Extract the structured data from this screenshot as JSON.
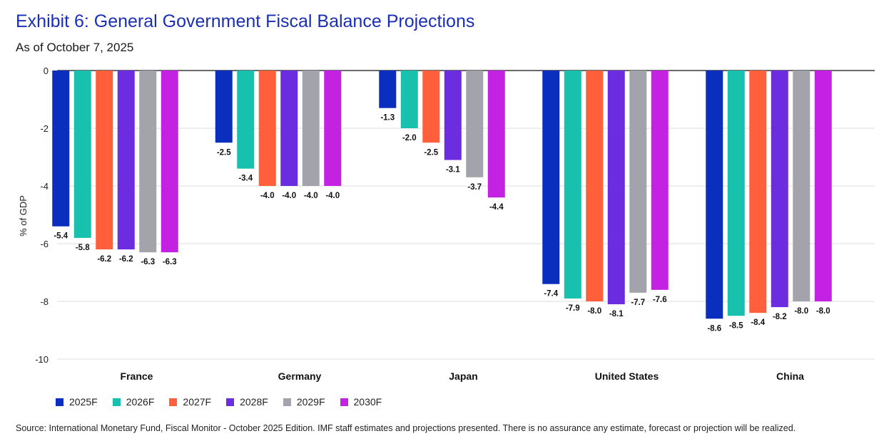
{
  "header": {
    "title": "Exhibit 6: General Government Fiscal Balance Projections",
    "subtitle": "As of October 7, 2025"
  },
  "source": "Source: International Monetary Fund, Fiscal Monitor - October 2025 Edition. IMF staff estimates and projections presented. There is no assurance any estimate, forecast or projection will be realized.",
  "chart_data": {
    "type": "bar",
    "title": "Exhibit 6: General Government Fiscal Balance Projections",
    "subtitle": "As of October 7, 2025",
    "xlabel": "",
    "ylabel": "% of GDP",
    "ylim": [
      -10,
      0
    ],
    "yticks": [
      0,
      -2,
      -4,
      -6,
      -8,
      -10
    ],
    "grid": true,
    "legend_position": "bottom-left",
    "categories": [
      "France",
      "Germany",
      "Japan",
      "United States",
      "China"
    ],
    "series": [
      {
        "name": "2025F",
        "color": "#0a2ebd",
        "values": [
          -5.4,
          -2.5,
          -1.3,
          -7.4,
          -8.6
        ]
      },
      {
        "name": "2026F",
        "color": "#17c1ad",
        "values": [
          -5.8,
          -3.4,
          -2.0,
          -7.9,
          -8.5
        ]
      },
      {
        "name": "2027F",
        "color": "#ff5f3a",
        "values": [
          -6.2,
          -4.0,
          -2.5,
          -8.0,
          -8.4
        ]
      },
      {
        "name": "2028F",
        "color": "#6c2de0",
        "values": [
          -6.2,
          -4.0,
          -3.1,
          -8.1,
          -8.2
        ]
      },
      {
        "name": "2029F",
        "color": "#a3a4ab",
        "values": [
          -6.3,
          -4.0,
          -3.7,
          -7.7,
          -8.0
        ]
      },
      {
        "name": "2030F",
        "color": "#c322e2",
        "values": [
          -6.3,
          -4.0,
          -4.4,
          -7.6,
          -8.0
        ]
      }
    ]
  }
}
